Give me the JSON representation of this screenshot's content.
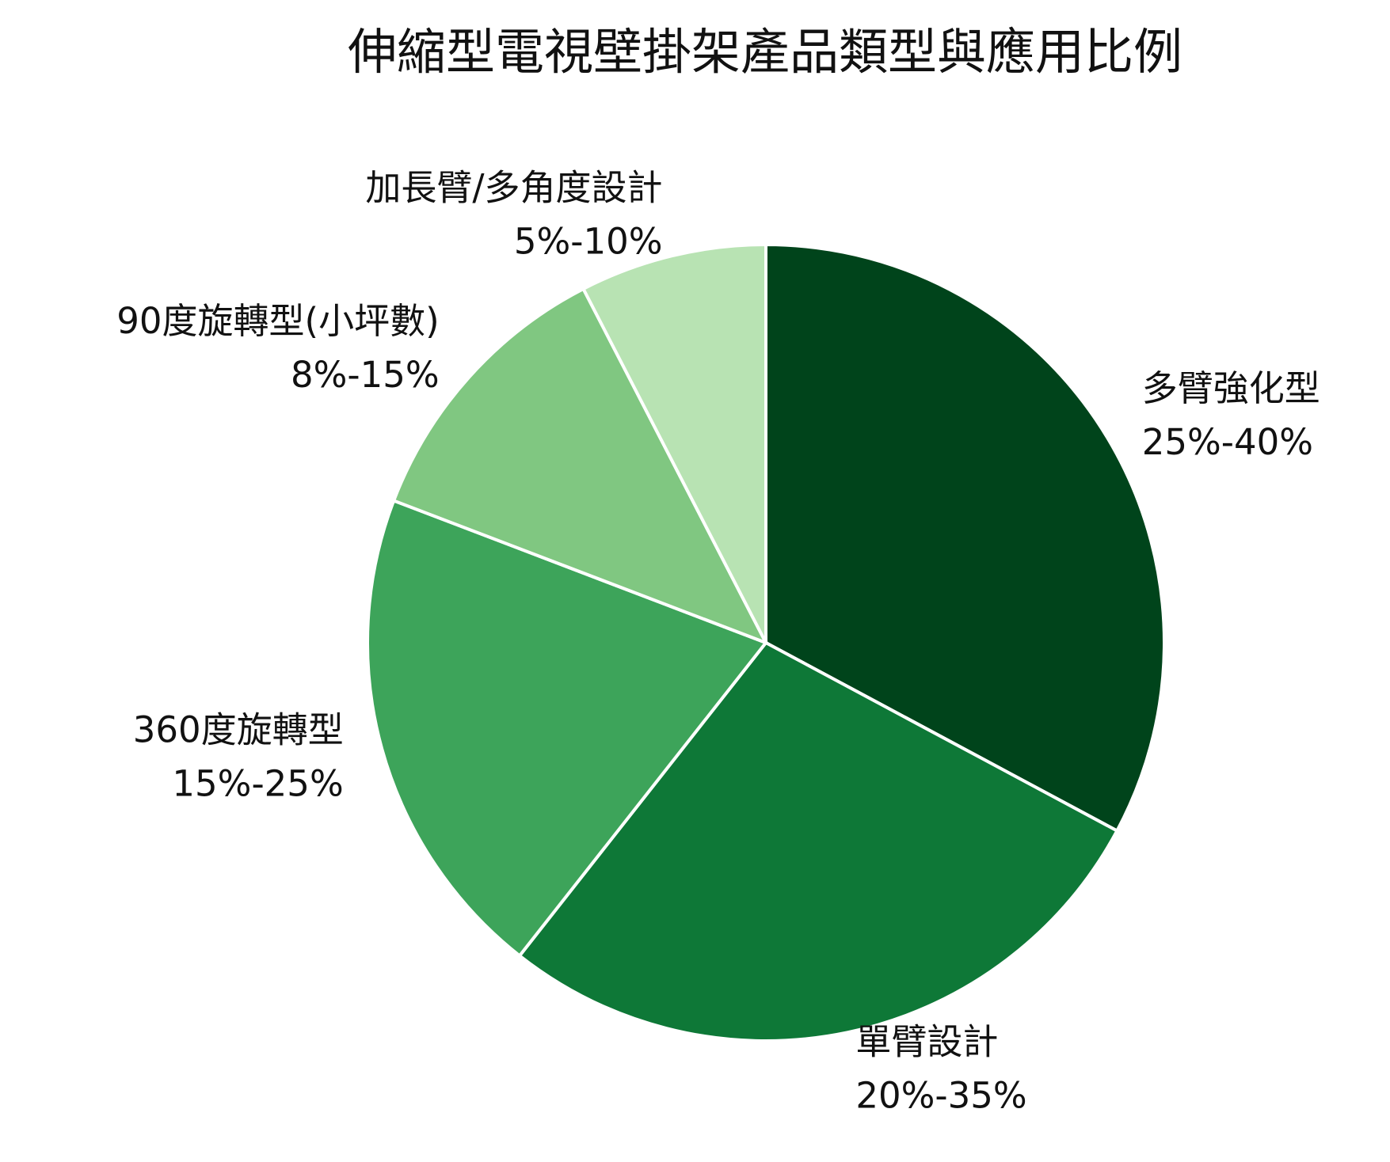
{
  "chart_data": {
    "type": "pie",
    "title": "伸縮型電視壁掛架產品類型與應用比例",
    "categories": [
      "多臂強化型",
      "單臂設計",
      "360度旋轉型",
      "90度旋轉型(小坪數)",
      "加長臂/多角度設計"
    ],
    "values": [
      32.5,
      27.5,
      20,
      11.5,
      7.5
    ],
    "value_labels": [
      "25%-40%",
      "20%-35%",
      "15%-25%",
      "8%-15%",
      "5%-10%"
    ],
    "colors": [
      "#00441b",
      "#0e7837",
      "#3da45a",
      "#80c781",
      "#b8e3b3"
    ]
  }
}
